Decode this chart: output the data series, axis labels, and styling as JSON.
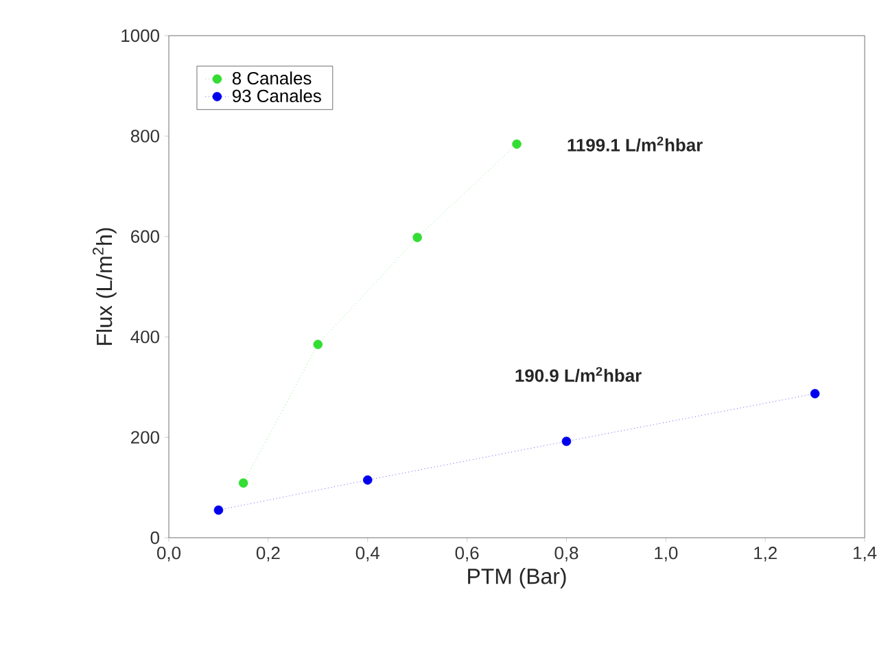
{
  "chart_data": {
    "type": "line",
    "xlabel": "PTM (Bar)",
    "ylabel": "Flux (L/m$^{2}$h)",
    "series": [
      {
        "name": "8 Canales",
        "color": "#33dd33",
        "x": [
          0.15,
          0.3,
          0.5,
          0.7
        ],
        "values": [
          109,
          385,
          598,
          784
        ]
      },
      {
        "name": "93 Canales",
        "color": "#0000ee",
        "x": [
          0.1,
          0.4,
          0.8,
          1.3
        ],
        "values": [
          55,
          115,
          192,
          287
        ]
      }
    ],
    "xlim": [
      0,
      1.4
    ],
    "ylim": [
      0,
      1000
    ],
    "xticks": [
      {
        "value": 0,
        "label": "0,0"
      },
      {
        "value": 0.2,
        "label": "0,2"
      },
      {
        "value": 0.4,
        "label": "0,4"
      },
      {
        "value": 0.6,
        "label": "0,6"
      },
      {
        "value": 0.8,
        "label": "0,8"
      },
      {
        "value": 1.0,
        "label": "1,0"
      },
      {
        "value": 1.2,
        "label": "1,2"
      },
      {
        "value": 1.4,
        "label": "1,4"
      }
    ],
    "yticks": [
      0,
      200,
      400,
      600,
      800,
      1000
    ],
    "annotations": [
      "1199.1 L/m$^{2}$hbar",
      "190.9 L/m$^{2}$hbar"
    ],
    "legend": "top left",
    "marker": "circle",
    "line_style": "dotted",
    "grid": false
  }
}
